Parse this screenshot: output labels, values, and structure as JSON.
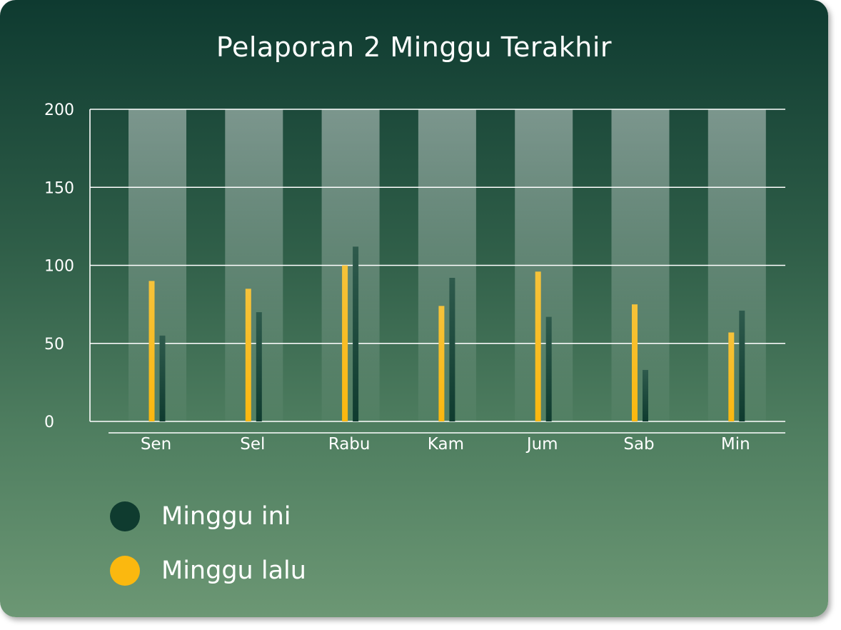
{
  "chart_data": {
    "type": "bar",
    "title": "Pelaporan 2 Minggu Terakhir",
    "xlabel": "",
    "ylabel": "",
    "ylim": [
      0,
      200
    ],
    "yticks": [
      0,
      50,
      100,
      150,
      200
    ],
    "grid": true,
    "legend_position": "bottom-left",
    "categories": [
      "Sen",
      "Sel",
      "Rabu",
      "Kam",
      "Jum",
      "Sab",
      "Min"
    ],
    "series": [
      {
        "name": "Minggu lalu",
        "color": "#fbb80f",
        "values": [
          90,
          85,
          100,
          74,
          96,
          75,
          57
        ]
      },
      {
        "name": "Minggu ini",
        "color": "#0f3b2f",
        "values": [
          55,
          70,
          112,
          92,
          67,
          33,
          71
        ]
      }
    ]
  },
  "legend": [
    {
      "label": "Minggu ini",
      "color": "#0f3b2f"
    },
    {
      "label": "Minggu lalu",
      "color": "#fbb80f"
    }
  ]
}
